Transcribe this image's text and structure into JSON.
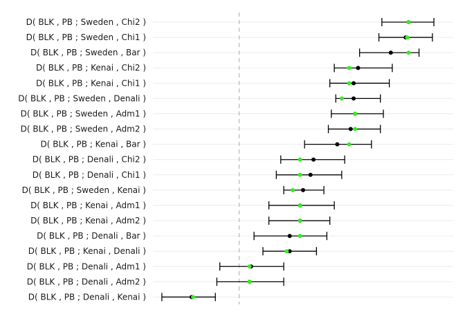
{
  "chart_data": {
    "type": "scatter",
    "subtype": "forest-plot",
    "title": "",
    "xlabel": "",
    "ylabel": "",
    "grid": "horizontal-only",
    "reference_line": {
      "x": 0,
      "style": "dashed",
      "color": "#aaaaaa"
    },
    "xlim": [
      -0.058,
      0.144
    ],
    "series": [
      {
        "kind": "estimate",
        "color": "#000000",
        "marker": "dot"
      },
      {
        "kind": "comparison",
        "color": "#33ee22",
        "marker": "dot"
      }
    ],
    "rows": [
      {
        "label": "D( BLK , PB ; Sweden , Chi2 )",
        "lo": 0.096,
        "est": 0.114,
        "alt": 0.114,
        "hi": 0.131
      },
      {
        "label": "D( BLK , PB ; Sweden , Chi1 )",
        "lo": 0.094,
        "est": 0.112,
        "alt": 0.113,
        "hi": 0.13
      },
      {
        "label": "D( BLK , PB ; Sweden , Bar )",
        "lo": 0.081,
        "est": 0.102,
        "alt": 0.114,
        "hi": 0.121
      },
      {
        "label": "D( BLK , PB ; Kenai , Chi2 )",
        "lo": 0.064,
        "est": 0.08,
        "alt": 0.074,
        "hi": 0.103
      },
      {
        "label": "D( BLK , PB ; Kenai , Chi1 )",
        "lo": 0.061,
        "est": 0.077,
        "alt": 0.074,
        "hi": 0.101
      },
      {
        "label": "D( BLK , PB ; Sweden , Denali )",
        "lo": 0.065,
        "est": 0.077,
        "alt": 0.069,
        "hi": 0.095
      },
      {
        "label": "D( BLK , PB ; Sweden , Adm1 )",
        "lo": 0.062,
        "est": 0.078,
        "alt": 0.078,
        "hi": 0.097
      },
      {
        "label": "D( BLK , PB ; Sweden , Adm2 )",
        "lo": 0.06,
        "est": 0.075,
        "alt": 0.078,
        "hi": 0.095
      },
      {
        "label": "D( BLK , PB ; Kenai , Bar )",
        "lo": 0.044,
        "est": 0.066,
        "alt": 0.074,
        "hi": 0.089
      },
      {
        "label": "D( BLK , PB ; Denali , Chi2 )",
        "lo": 0.028,
        "est": 0.05,
        "alt": 0.041,
        "hi": 0.071
      },
      {
        "label": "D( BLK , PB ; Denali , Chi1 )",
        "lo": 0.025,
        "est": 0.048,
        "alt": 0.041,
        "hi": 0.069
      },
      {
        "label": "D( BLK , PB ; Sweden , Kenai )",
        "lo": 0.03,
        "est": 0.043,
        "alt": 0.036,
        "hi": 0.057
      },
      {
        "label": "D( BLK , PB ; Kenai , Adm1 )",
        "lo": 0.02,
        "est": 0.041,
        "alt": 0.041,
        "hi": 0.064
      },
      {
        "label": "D( BLK , PB ; Kenai , Adm2 )",
        "lo": 0.02,
        "est": 0.041,
        "alt": 0.041,
        "hi": 0.061
      },
      {
        "label": "D( BLK , PB ; Denali , Bar )",
        "lo": 0.01,
        "est": 0.034,
        "alt": 0.041,
        "hi": 0.059
      },
      {
        "label": "D( BLK , PB ; Kenai , Denali )",
        "lo": 0.016,
        "est": 0.034,
        "alt": 0.032,
        "hi": 0.052
      },
      {
        "label": "D( BLK , PB ; Denali , Adm1 )",
        "lo": -0.013,
        "est": 0.008,
        "alt": 0.007,
        "hi": 0.03
      },
      {
        "label": "D( BLK , PB ; Denali , Adm2 )",
        "lo": -0.015,
        "est": 0.007,
        "alt": 0.007,
        "hi": 0.03
      },
      {
        "label": "D( BLK , PB ; Denali , Kenai )",
        "lo": -0.052,
        "est": -0.032,
        "alt": -0.031,
        "hi": -0.016
      }
    ]
  }
}
